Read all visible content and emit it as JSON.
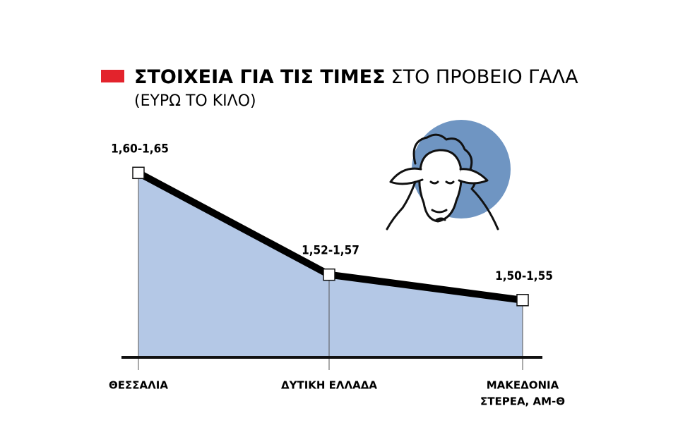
{
  "chart_data": {
    "type": "area",
    "title": "ΣΤΟΙΧΕΙΑ ΓΙΑ ΤΙΣ ΤΙΜΕΣ",
    "title_continued": "ΣΤΟ ΠΡΟΒΕΙΟ ΓΑΛΑ",
    "subtitle": "(ΕΥΡΩ ΤΟ ΚΙΛΟ)",
    "categories": [
      [
        "ΘΕΣΣΑΛΙΑ"
      ],
      [
        "ΔΥΤΙΚΗ ΕΛΛΑΔΑ"
      ],
      [
        "ΜΑΚΕΔΟΝΙΑ",
        "ΣΤΕΡΕΑ, ΑΜ-Θ"
      ]
    ],
    "values_low": [
      1.6,
      1.52,
      1.5
    ],
    "values_high": [
      1.65,
      1.57,
      1.55
    ],
    "value_labels": [
      "1,60-1,65",
      "1,52-1,57",
      "1,50-1,55"
    ],
    "ylim": [
      1.48,
      1.68
    ],
    "color": "#b4c8e6",
    "line_color": "#000000",
    "legend_color": "#e3232c"
  }
}
